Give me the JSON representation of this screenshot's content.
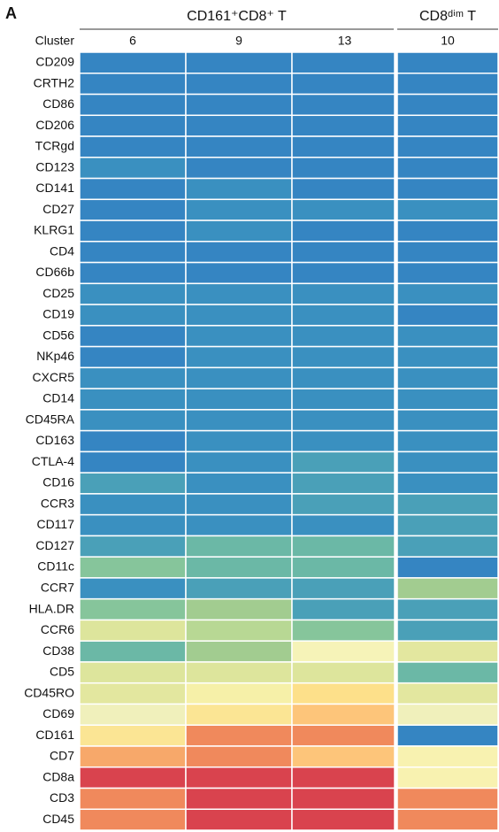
{
  "chart_data": {
    "type": "heatmap",
    "panel": "A",
    "groups": [
      {
        "label": "CD161⁺CD8⁺ T",
        "span": 3
      },
      {
        "label": "CD8ᵈⁱᵐ T",
        "span": 1
      }
    ],
    "column_header": "Cluster",
    "columns": [
      "6",
      "9",
      "13",
      "10"
    ],
    "rows": [
      "CD209",
      "CRTH2",
      "CD86",
      "CD206",
      "TCRgd",
      "CD123",
      "CD141",
      "CD27",
      "KLRG1",
      "CD4",
      "CD66b",
      "CD25",
      "CD19",
      "CD56",
      "NKp46",
      "CXCR5",
      "CD14",
      "CD45RA",
      "CD163",
      "CTLA-4",
      "CD16",
      "CCR3",
      "CD117",
      "CD127",
      "CD11c",
      "CCR7",
      "HLA.DR",
      "CCR6",
      "CD38",
      "CD5",
      "CD45RO",
      "CD69",
      "CD161",
      "CD7",
      "CD8a",
      "CD3",
      "CD45"
    ],
    "cell_colors": [
      [
        "#3585c2",
        "#3585c2",
        "#3585c2",
        "#3585c2"
      ],
      [
        "#3585c2",
        "#3585c2",
        "#3585c2",
        "#3585c2"
      ],
      [
        "#3585c2",
        "#3585c2",
        "#3585c2",
        "#3585c2"
      ],
      [
        "#3585c2",
        "#3585c2",
        "#3585c2",
        "#3585c2"
      ],
      [
        "#3585c2",
        "#3585c2",
        "#3585c2",
        "#3585c2"
      ],
      [
        "#3a90c0",
        "#3585c2",
        "#3585c2",
        "#3585c2"
      ],
      [
        "#3585c2",
        "#3a90c0",
        "#3585c2",
        "#3585c2"
      ],
      [
        "#3585c2",
        "#3a90c0",
        "#3a90c0",
        "#3a90c0"
      ],
      [
        "#3585c2",
        "#3a90c0",
        "#3585c2",
        "#3585c2"
      ],
      [
        "#3585c2",
        "#3585c2",
        "#3585c2",
        "#3585c2"
      ],
      [
        "#3585c2",
        "#3585c2",
        "#3585c2",
        "#3585c2"
      ],
      [
        "#3a90c0",
        "#3a90c0",
        "#3a90c0",
        "#3a90c0"
      ],
      [
        "#3a90c0",
        "#3a90c0",
        "#3a90c0",
        "#3585c2"
      ],
      [
        "#3585c2",
        "#3a90c0",
        "#3a90c0",
        "#3a90c0"
      ],
      [
        "#3585c2",
        "#3a90c0",
        "#3a90c0",
        "#3a90c0"
      ],
      [
        "#3a90c0",
        "#3a90c0",
        "#3a90c0",
        "#3a90c0"
      ],
      [
        "#3a90c0",
        "#3a90c0",
        "#3a90c0",
        "#3a90c0"
      ],
      [
        "#3a90c0",
        "#3a90c0",
        "#3a90c0",
        "#3a90c0"
      ],
      [
        "#3585c2",
        "#3a90c0",
        "#3a90c0",
        "#3a90c0"
      ],
      [
        "#3585c2",
        "#3a90c0",
        "#4aa0b8",
        "#3a90c0"
      ],
      [
        "#4aa0b8",
        "#3a90c0",
        "#4aa0b8",
        "#3a90c0"
      ],
      [
        "#3a90c0",
        "#3a90c0",
        "#4aa0b8",
        "#4aa0b8"
      ],
      [
        "#3a90c0",
        "#3a90c0",
        "#3a90c0",
        "#4aa0b8"
      ],
      [
        "#4aa0b8",
        "#6bb8a6",
        "#6bb8a6",
        "#4aa0b8"
      ],
      [
        "#86c59b",
        "#6bb8a6",
        "#6bb8a6",
        "#3585c2"
      ],
      [
        "#3a90c0",
        "#4aa0b8",
        "#4aa0b8",
        "#a2cc90"
      ],
      [
        "#86c59b",
        "#a2cc90",
        "#4aa0b8",
        "#4aa0b8"
      ],
      [
        "#dde59c",
        "#b8d894",
        "#86c59b",
        "#4aa0b8"
      ],
      [
        "#6bb8a6",
        "#a2cc90",
        "#f6f3b8",
        "#e3e79f"
      ],
      [
        "#dde59c",
        "#dde59c",
        "#dde59c",
        "#6bb8a6"
      ],
      [
        "#e3e79f",
        "#f6f0a8",
        "#fde08a",
        "#e3e79f"
      ],
      [
        "#f0f0bb",
        "#fbe594",
        "#fdc57a",
        "#f0f0bb"
      ],
      [
        "#fbe594",
        "#f0895c",
        "#f0895c",
        "#3585c2"
      ],
      [
        "#f7a86a",
        "#f0895c",
        "#fdc57a",
        "#f8f2b0"
      ],
      [
        "#d9434e",
        "#d9434e",
        "#d9434e",
        "#f8f2b0"
      ],
      [
        "#f0895c",
        "#d9434e",
        "#d9434e",
        "#f0895c"
      ],
      [
        "#f0895c",
        "#d9434e",
        "#d9434e",
        "#f0895c"
      ]
    ]
  }
}
